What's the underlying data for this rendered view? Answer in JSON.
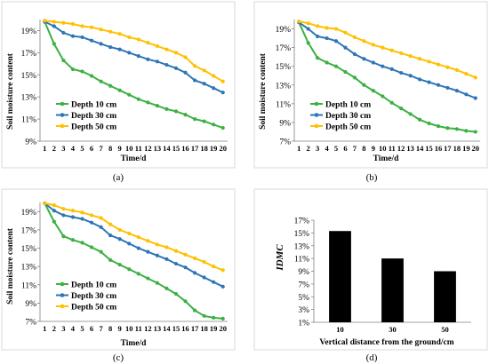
{
  "chart_data": [
    {
      "type": "line",
      "caption": "(a)",
      "xlabel": "Time/d",
      "ylabel": "Soil moisture content",
      "x": [
        1,
        2,
        3,
        4,
        5,
        6,
        7,
        8,
        9,
        10,
        11,
        12,
        13,
        14,
        15,
        16,
        17,
        18,
        19,
        20
      ],
      "yticks": [
        "9%",
        "11%",
        "13%",
        "15%",
        "17%",
        "19%"
      ],
      "ylim": [
        9,
        20
      ],
      "legend_position": "bottom-left",
      "series": [
        {
          "name": "Depth 10 cm",
          "color": "#3cb043",
          "values": [
            19.8,
            17.8,
            16.3,
            15.5,
            15.3,
            14.9,
            14.4,
            14.0,
            13.6,
            13.2,
            12.8,
            12.5,
            12.2,
            11.9,
            11.7,
            11.4,
            11.0,
            10.8,
            10.5,
            10.2
          ]
        },
        {
          "name": "Depth 30 cm",
          "color": "#2e75b6",
          "values": [
            19.8,
            19.4,
            18.8,
            18.5,
            18.4,
            18.1,
            17.8,
            17.5,
            17.3,
            17.0,
            16.7,
            16.4,
            16.2,
            15.9,
            15.6,
            15.2,
            14.5,
            14.2,
            13.8,
            13.4
          ]
        },
        {
          "name": "Depth 50 cm",
          "color": "#ffc000",
          "values": [
            19.9,
            19.8,
            19.7,
            19.6,
            19.4,
            19.3,
            19.1,
            18.9,
            18.7,
            18.4,
            18.2,
            17.9,
            17.6,
            17.3,
            17.0,
            16.6,
            15.8,
            15.4,
            14.9,
            14.4
          ]
        }
      ]
    },
    {
      "type": "line",
      "caption": "(b)",
      "xlabel": "Time/d",
      "ylabel": "Soil moisture content",
      "x": [
        1,
        2,
        3,
        4,
        5,
        6,
        7,
        8,
        9,
        10,
        11,
        12,
        13,
        14,
        15,
        16,
        17,
        18,
        19,
        20
      ],
      "yticks": [
        "7%",
        "9%",
        "11%",
        "13%",
        "15%",
        "17%",
        "19%"
      ],
      "ylim": [
        7,
        20
      ],
      "legend_position": "bottom-left",
      "series": [
        {
          "name": "Depth 10 cm",
          "color": "#3cb043",
          "values": [
            19.7,
            17.5,
            15.9,
            15.4,
            15.0,
            14.4,
            13.8,
            13.0,
            12.4,
            11.8,
            11.1,
            10.5,
            9.9,
            9.3,
            8.9,
            8.6,
            8.4,
            8.3,
            8.1,
            8.0
          ]
        },
        {
          "name": "Depth 30 cm",
          "color": "#2e75b6",
          "values": [
            19.7,
            19.0,
            18.2,
            18.0,
            17.7,
            17.0,
            16.3,
            15.8,
            15.4,
            15.0,
            14.7,
            14.3,
            14.0,
            13.6,
            13.3,
            13.0,
            12.7,
            12.4,
            12.0,
            11.6
          ]
        },
        {
          "name": "Depth 50 cm",
          "color": "#ffc000",
          "values": [
            19.8,
            19.6,
            19.3,
            19.1,
            19.0,
            18.6,
            18.1,
            17.7,
            17.3,
            17.0,
            16.7,
            16.4,
            16.1,
            15.8,
            15.5,
            15.2,
            14.9,
            14.6,
            14.2,
            13.8
          ]
        }
      ]
    },
    {
      "type": "line",
      "caption": "(c)",
      "xlabel": "Time/d",
      "ylabel": "Soil moisture content",
      "x": [
        1,
        2,
        3,
        4,
        5,
        6,
        7,
        8,
        9,
        10,
        11,
        12,
        13,
        14,
        15,
        16,
        17,
        18,
        19,
        20
      ],
      "yticks": [
        "7%",
        "9%",
        "11%",
        "13%",
        "15%",
        "17%",
        "19%"
      ],
      "ylim": [
        7,
        20
      ],
      "legend_position": "bottom-left",
      "series": [
        {
          "name": "Depth 10 cm",
          "color": "#3cb043",
          "values": [
            19.9,
            17.9,
            16.3,
            15.9,
            15.6,
            15.1,
            14.6,
            13.7,
            13.2,
            12.7,
            12.2,
            11.7,
            11.2,
            10.6,
            10.0,
            9.2,
            8.2,
            7.6,
            7.4,
            7.3
          ]
        },
        {
          "name": "Depth 30 cm",
          "color": "#2e75b6",
          "values": [
            19.9,
            19.1,
            18.6,
            18.4,
            18.2,
            17.8,
            17.3,
            16.4,
            16.0,
            15.5,
            15.0,
            14.6,
            14.2,
            13.8,
            13.3,
            12.9,
            12.3,
            11.8,
            11.3,
            10.8
          ]
        },
        {
          "name": "Depth 50 cm",
          "color": "#ffc000",
          "values": [
            19.9,
            19.7,
            19.3,
            19.1,
            18.9,
            18.6,
            18.3,
            17.6,
            17.0,
            16.6,
            16.2,
            15.8,
            15.4,
            15.1,
            14.7,
            14.3,
            13.9,
            13.5,
            13.0,
            12.6
          ]
        }
      ]
    },
    {
      "type": "bar",
      "caption": "(d)",
      "xlabel": "Vertical distance from the ground/cm",
      "ylabel": "IDMC",
      "categories": [
        "10",
        "30",
        "50"
      ],
      "values": [
        15.3,
        11.0,
        9.0
      ],
      "yticks": [
        "1%",
        "3%",
        "5%",
        "7%",
        "9%",
        "11%",
        "13%",
        "15%",
        "17%"
      ],
      "ylim": [
        1,
        17
      ],
      "bar_color": "#000000"
    }
  ]
}
